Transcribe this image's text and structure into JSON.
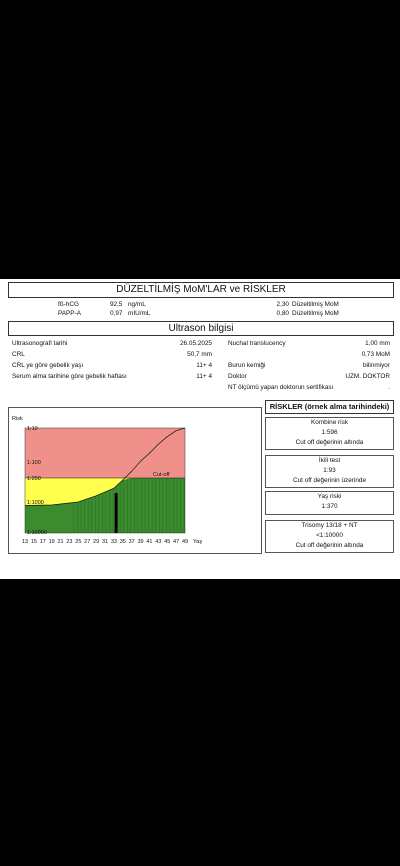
{
  "header": {
    "title": "DÜZELTİLMİŞ  MoM'LAR ve RİSKLER"
  },
  "markers": [
    {
      "name": "fß-hCG",
      "value": "92,5",
      "unit": "ng/mL",
      "mom": "2,30",
      "mom_label": "Düzeltilmiş  MoM"
    },
    {
      "name": "PAPP-A",
      "value": "0,97",
      "unit": "mIU/mL",
      "mom": "0,80",
      "mom_label": "Düzeltilmiş  MoM"
    }
  ],
  "ultrasound": {
    "title": "Ultrason bilgisi",
    "left": [
      {
        "label": "Ultrasonografi tarihi",
        "value": "26.05.2025"
      },
      {
        "label": "CRL",
        "value": "50,7 mm"
      },
      {
        "label": "CRL ye göre gebelik yaşı",
        "value": "11+  4"
      },
      {
        "label": "Serum alma tarihine göre gebelik haftası",
        "value": "11+  4"
      }
    ],
    "right": [
      {
        "label": "Nuchal translucency",
        "value": "1,00   mm"
      },
      {
        "label": "",
        "value": "0,73 MoM"
      },
      {
        "label": "Burun kemiği",
        "value": "bilinmiyor"
      },
      {
        "label": "Doktor",
        "value": "UZM. DOKTOR"
      },
      {
        "label": "NT ölçümü yapan doktorun sertifikası",
        "value": "."
      }
    ]
  },
  "risks": {
    "title": "RİSKLER (örnek alma tarihindeki)",
    "boxes": [
      {
        "title": "Kombine risk",
        "value": "1:596",
        "note": "Cut off değerinin altında"
      },
      {
        "title": "İkili test",
        "value": "1:93",
        "note": "Cut off değerinin üzerinde"
      },
      {
        "title": "Yaş riski",
        "value": "1:370",
        "note": ""
      },
      {
        "title": "Trisomy 13/18 + NT",
        "value": "<1:10000",
        "note": "Cut off değerinin altında"
      }
    ]
  },
  "chart_data": {
    "type": "area",
    "ylabel": "Risk",
    "xlabel": "Yaş",
    "y_ticks": [
      "1:10",
      "1:100",
      "1:250",
      "1:1000",
      "1:10000"
    ],
    "x_ticks": [
      13,
      15,
      17,
      19,
      21,
      23,
      25,
      27,
      29,
      31,
      33,
      35,
      37,
      39,
      41,
      43,
      45,
      47,
      49
    ],
    "cutoff_label": "Cut-off",
    "cutoff": 250,
    "zone_colors": {
      "high": "#ef918a",
      "mid": "#ffff4d",
      "low": "#3c8c2f"
    },
    "patient_age": 33.5,
    "patient_risk_label": "1:596",
    "age_risk_curve": [
      [
        13,
        1300
      ],
      [
        19,
        1250
      ],
      [
        25,
        1000
      ],
      [
        29,
        700
      ],
      [
        33,
        450
      ],
      [
        35,
        280
      ],
      [
        37,
        170
      ],
      [
        39,
        95
      ],
      [
        41,
        55
      ],
      [
        43,
        30
      ],
      [
        45,
        18
      ],
      [
        47,
        12
      ],
      [
        49,
        9
      ]
    ]
  }
}
